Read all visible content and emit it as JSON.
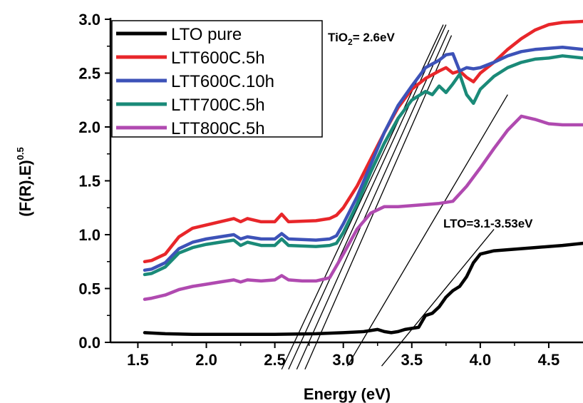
{
  "chart_data": {
    "type": "line",
    "xlabel": "Energy (eV)",
    "ylabel": {
      "base": "(F(R).E)",
      "exp": "0.5"
    },
    "xlim": [
      1.3,
      4.75
    ],
    "ylim": [
      0,
      3.0
    ],
    "xticks": [
      "1.5",
      "2.0",
      "2.5",
      "3.0",
      "3.5",
      "4.0",
      "4.5"
    ],
    "yticks": [
      "0.0",
      "0.5",
      "1.0",
      "1.5",
      "2.0",
      "2.5",
      "3.0"
    ],
    "legend_position": "top-left",
    "series": [
      {
        "name": "LTO pure",
        "color": "#000000",
        "points": [
          [
            1.55,
            0.09
          ],
          [
            1.7,
            0.08
          ],
          [
            1.9,
            0.075
          ],
          [
            2.2,
            0.075
          ],
          [
            2.5,
            0.075
          ],
          [
            2.8,
            0.08
          ],
          [
            3.0,
            0.09
          ],
          [
            3.15,
            0.1
          ],
          [
            3.25,
            0.12
          ],
          [
            3.3,
            0.1
          ],
          [
            3.35,
            0.09
          ],
          [
            3.4,
            0.1
          ],
          [
            3.45,
            0.12
          ],
          [
            3.5,
            0.13
          ],
          [
            3.55,
            0.14
          ],
          [
            3.6,
            0.25
          ],
          [
            3.65,
            0.27
          ],
          [
            3.7,
            0.33
          ],
          [
            3.75,
            0.42
          ],
          [
            3.8,
            0.48
          ],
          [
            3.85,
            0.52
          ],
          [
            3.9,
            0.61
          ],
          [
            3.95,
            0.74
          ],
          [
            4.0,
            0.82
          ],
          [
            4.1,
            0.85
          ],
          [
            4.2,
            0.86
          ],
          [
            4.3,
            0.87
          ],
          [
            4.4,
            0.88
          ],
          [
            4.5,
            0.89
          ],
          [
            4.6,
            0.9
          ],
          [
            4.75,
            0.92
          ]
        ]
      },
      {
        "name": "LTT600C.5h",
        "color": "#e8262a",
        "points": [
          [
            1.55,
            0.75
          ],
          [
            1.6,
            0.76
          ],
          [
            1.7,
            0.82
          ],
          [
            1.8,
            0.98
          ],
          [
            1.9,
            1.06
          ],
          [
            2.0,
            1.09
          ],
          [
            2.1,
            1.12
          ],
          [
            2.2,
            1.15
          ],
          [
            2.25,
            1.12
          ],
          [
            2.3,
            1.15
          ],
          [
            2.4,
            1.12
          ],
          [
            2.5,
            1.12
          ],
          [
            2.55,
            1.19
          ],
          [
            2.6,
            1.12
          ],
          [
            2.8,
            1.13
          ],
          [
            2.9,
            1.15
          ],
          [
            2.95,
            1.18
          ],
          [
            3.0,
            1.25
          ],
          [
            3.1,
            1.45
          ],
          [
            3.2,
            1.7
          ],
          [
            3.3,
            1.95
          ],
          [
            3.4,
            2.18
          ],
          [
            3.5,
            2.35
          ],
          [
            3.6,
            2.45
          ],
          [
            3.7,
            2.52
          ],
          [
            3.75,
            2.55
          ],
          [
            3.8,
            2.5
          ],
          [
            3.85,
            2.52
          ],
          [
            3.9,
            2.46
          ],
          [
            3.95,
            2.42
          ],
          [
            4.0,
            2.5
          ],
          [
            4.1,
            2.6
          ],
          [
            4.2,
            2.72
          ],
          [
            4.3,
            2.82
          ],
          [
            4.4,
            2.9
          ],
          [
            4.5,
            2.95
          ],
          [
            4.6,
            2.97
          ],
          [
            4.75,
            2.98
          ]
        ]
      },
      {
        "name": "LTT600C.10h",
        "color": "#3d52b8",
        "points": [
          [
            1.55,
            0.67
          ],
          [
            1.6,
            0.68
          ],
          [
            1.7,
            0.74
          ],
          [
            1.8,
            0.87
          ],
          [
            1.9,
            0.93
          ],
          [
            2.0,
            0.96
          ],
          [
            2.1,
            0.98
          ],
          [
            2.2,
            1.0
          ],
          [
            2.25,
            0.96
          ],
          [
            2.3,
            0.98
          ],
          [
            2.4,
            0.96
          ],
          [
            2.5,
            0.96
          ],
          [
            2.55,
            1.01
          ],
          [
            2.6,
            0.96
          ],
          [
            2.8,
            0.95
          ],
          [
            2.9,
            0.96
          ],
          [
            2.95,
            0.99
          ],
          [
            3.0,
            1.1
          ],
          [
            3.1,
            1.35
          ],
          [
            3.2,
            1.65
          ],
          [
            3.3,
            1.95
          ],
          [
            3.4,
            2.2
          ],
          [
            3.5,
            2.38
          ],
          [
            3.6,
            2.55
          ],
          [
            3.7,
            2.62
          ],
          [
            3.75,
            2.67
          ],
          [
            3.8,
            2.68
          ],
          [
            3.85,
            2.52
          ],
          [
            3.9,
            2.55
          ],
          [
            3.95,
            2.54
          ],
          [
            4.0,
            2.55
          ],
          [
            4.1,
            2.6
          ],
          [
            4.2,
            2.66
          ],
          [
            4.3,
            2.7
          ],
          [
            4.4,
            2.72
          ],
          [
            4.5,
            2.73
          ],
          [
            4.6,
            2.74
          ],
          [
            4.75,
            2.72
          ]
        ]
      },
      {
        "name": "LTT700C.5h",
        "color": "#1a8a78",
        "points": [
          [
            1.55,
            0.63
          ],
          [
            1.6,
            0.64
          ],
          [
            1.7,
            0.7
          ],
          [
            1.8,
            0.83
          ],
          [
            1.9,
            0.88
          ],
          [
            2.0,
            0.91
          ],
          [
            2.1,
            0.93
          ],
          [
            2.2,
            0.95
          ],
          [
            2.25,
            0.9
          ],
          [
            2.3,
            0.93
          ],
          [
            2.4,
            0.9
          ],
          [
            2.5,
            0.9
          ],
          [
            2.55,
            0.96
          ],
          [
            2.6,
            0.9
          ],
          [
            2.8,
            0.89
          ],
          [
            2.9,
            0.9
          ],
          [
            2.95,
            0.92
          ],
          [
            3.0,
            1.02
          ],
          [
            3.1,
            1.28
          ],
          [
            3.2,
            1.58
          ],
          [
            3.3,
            1.85
          ],
          [
            3.4,
            2.08
          ],
          [
            3.5,
            2.25
          ],
          [
            3.6,
            2.33
          ],
          [
            3.65,
            2.3
          ],
          [
            3.7,
            2.38
          ],
          [
            3.75,
            2.32
          ],
          [
            3.8,
            2.4
          ],
          [
            3.85,
            2.49
          ],
          [
            3.9,
            2.3
          ],
          [
            3.95,
            2.22
          ],
          [
            4.0,
            2.35
          ],
          [
            4.1,
            2.47
          ],
          [
            4.2,
            2.55
          ],
          [
            4.3,
            2.6
          ],
          [
            4.4,
            2.63
          ],
          [
            4.5,
            2.64
          ],
          [
            4.6,
            2.66
          ],
          [
            4.75,
            2.64
          ]
        ]
      },
      {
        "name": "LTT800C.5h",
        "color": "#b04ab0",
        "points": [
          [
            1.55,
            0.4
          ],
          [
            1.6,
            0.41
          ],
          [
            1.7,
            0.44
          ],
          [
            1.8,
            0.49
          ],
          [
            1.9,
            0.52
          ],
          [
            2.0,
            0.54
          ],
          [
            2.1,
            0.56
          ],
          [
            2.2,
            0.58
          ],
          [
            2.25,
            0.56
          ],
          [
            2.3,
            0.58
          ],
          [
            2.4,
            0.57
          ],
          [
            2.5,
            0.58
          ],
          [
            2.55,
            0.62
          ],
          [
            2.6,
            0.58
          ],
          [
            2.7,
            0.57
          ],
          [
            2.8,
            0.57
          ],
          [
            2.9,
            0.6
          ],
          [
            3.0,
            0.82
          ],
          [
            3.1,
            1.05
          ],
          [
            3.2,
            1.2
          ],
          [
            3.3,
            1.26
          ],
          [
            3.4,
            1.26
          ],
          [
            3.5,
            1.27
          ],
          [
            3.6,
            1.28
          ],
          [
            3.7,
            1.29
          ],
          [
            3.8,
            1.31
          ],
          [
            3.9,
            1.45
          ],
          [
            4.0,
            1.62
          ],
          [
            4.1,
            1.8
          ],
          [
            4.2,
            1.97
          ],
          [
            4.3,
            2.1
          ],
          [
            4.4,
            2.07
          ],
          [
            4.5,
            2.03
          ],
          [
            4.6,
            2.02
          ],
          [
            4.75,
            2.02
          ]
        ]
      }
    ],
    "annotations": [
      {
        "text_main": "TiO",
        "text_sub": "2",
        "text_rest": "= 2.6eV"
      },
      {
        "text": "LTO=3.1-3.53eV"
      }
    ],
    "tangent_lines": [
      {
        "x1": 2.55,
        "y1": -0.25,
        "x2": 3.73,
        "y2": 2.95
      },
      {
        "x1": 2.6,
        "y1": -0.25,
        "x2": 3.75,
        "y2": 2.95
      },
      {
        "x1": 2.66,
        "y1": -0.25,
        "x2": 3.77,
        "y2": 2.9
      },
      {
        "x1": 2.72,
        "y1": -0.25,
        "x2": 3.79,
        "y2": 2.85
      },
      {
        "x1": 3.03,
        "y1": -0.22,
        "x2": 4.2,
        "y2": 2.3
      },
      {
        "x1": 3.28,
        "y1": -0.22,
        "x2": 4.1,
        "y2": 1.05
      }
    ]
  }
}
